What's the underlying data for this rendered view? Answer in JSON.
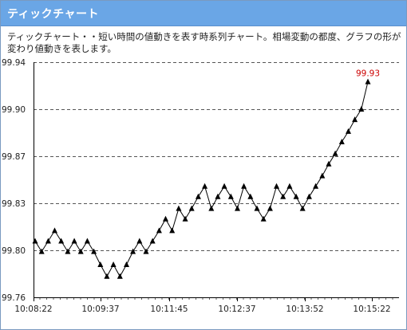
{
  "header": {
    "title": "ティックチャート",
    "description": "ティックチャート・・短い時間の値動きを表す時系列チャート。相場変動の都度、グラフの形が変わり値動きを表します。"
  },
  "chart_data": {
    "type": "line",
    "title": "",
    "xlabel": "",
    "ylabel": "",
    "ylim": [
      99.76,
      99.94
    ],
    "yticks": [
      99.94,
      99.9,
      99.87,
      99.83,
      99.8,
      99.76
    ],
    "xtick_labels": [
      "10:08:22",
      "10:09:37",
      "10:11:45",
      "10:12:37",
      "10:13:52",
      "10:15:22"
    ],
    "grid": true,
    "grid_style": "dashed-horizontal",
    "marker": "triangle",
    "line_color": "#000000",
    "last_value_label": "99.93",
    "last_value_color": "#cc0000",
    "values": [
      99.803,
      99.795,
      99.803,
      99.811,
      99.803,
      99.795,
      99.803,
      99.795,
      99.803,
      99.795,
      99.785,
      99.776,
      99.785,
      99.776,
      99.785,
      99.795,
      99.803,
      99.795,
      99.803,
      99.811,
      99.82,
      99.811,
      99.828,
      99.82,
      99.828,
      99.837,
      99.845,
      99.828,
      99.837,
      99.845,
      99.837,
      99.828,
      99.845,
      99.837,
      99.828,
      99.82,
      99.828,
      99.845,
      99.837,
      99.845,
      99.837,
      99.828,
      99.837,
      99.845,
      99.853,
      99.862,
      99.87,
      99.879,
      99.887,
      99.896,
      99.904,
      99.925
    ]
  }
}
